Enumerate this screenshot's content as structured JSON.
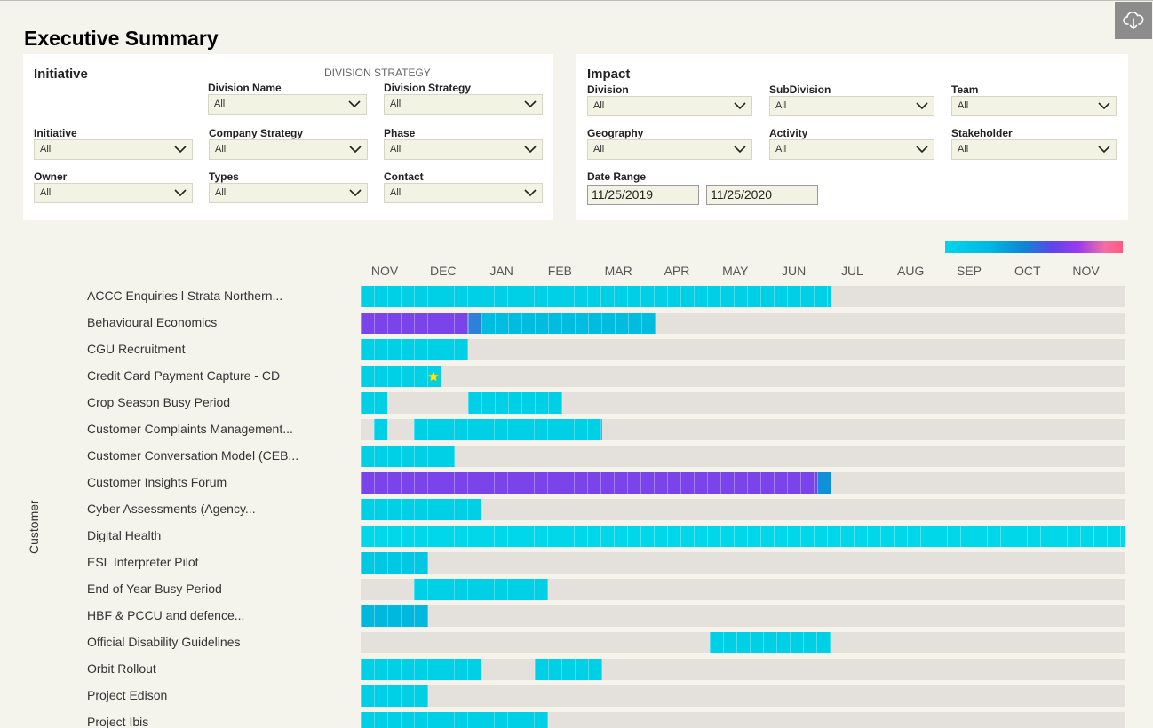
{
  "title": "Executive Summary",
  "toolbar": {
    "download_icon": "cloud-download-icon"
  },
  "initiative_panel": {
    "heading": "Initiative",
    "caption": "DIVISION STRATEGY",
    "filters": [
      {
        "label": "Division Name",
        "value": "All"
      },
      {
        "label": "Division Strategy",
        "value": "All"
      },
      {
        "label": "Initiative",
        "value": "All"
      },
      {
        "label": "Company Strategy",
        "value": "All"
      },
      {
        "label": "Phase",
        "value": "All"
      },
      {
        "label": "Owner",
        "value": "All"
      },
      {
        "label": "Types",
        "value": "All"
      },
      {
        "label": "Contact",
        "value": "All"
      }
    ]
  },
  "impact_panel": {
    "heading": "Impact",
    "filters": [
      {
        "label": "Division",
        "value": "All"
      },
      {
        "label": "SubDivision",
        "value": "All"
      },
      {
        "label": "Team",
        "value": "All"
      },
      {
        "label": "Geography",
        "value": "All"
      },
      {
        "label": "Activity",
        "value": "All"
      },
      {
        "label": "Stakeholder",
        "value": "All"
      }
    ],
    "date_range": {
      "label": "Date Range",
      "start": "11/25/2019",
      "end": "11/25/2020"
    }
  },
  "gantt": {
    "y_axis_label": "Customer",
    "weeks_total": 57,
    "months": [
      "NOV",
      "DEC",
      "JAN",
      "FEB",
      "MAR",
      "APR",
      "MAY",
      "JUN",
      "JUL",
      "AUG",
      "SEP",
      "OCT",
      "NOV"
    ],
    "legend_colors": [
      "#00d4ea",
      "#0f84d6",
      "#5d46e8",
      "#ff5a80"
    ],
    "rows": [
      {
        "label": "ACCC Enquiries l Strata Northern...",
        "segments": [
          {
            "start": 0,
            "end": 35,
            "color": "#00d0e6"
          }
        ]
      },
      {
        "label": "Behavioural Economics",
        "segments": [
          {
            "start": 0,
            "end": 8,
            "color": "#7b44ea"
          },
          {
            "start": 8,
            "end": 9,
            "color": "#2f80d8"
          },
          {
            "start": 9,
            "end": 22,
            "color": "#00bde0"
          }
        ]
      },
      {
        "label": "CGU Recruitment",
        "segments": [
          {
            "start": 0,
            "end": 8,
            "color": "#00d0e6"
          }
        ]
      },
      {
        "label": "Credit Card Payment Capture - CD",
        "segments": [
          {
            "start": 0,
            "end": 6,
            "color": "#00d0e6"
          }
        ],
        "marker": {
          "week": 5.4,
          "icon": "star-icon"
        }
      },
      {
        "label": "Crop Season Busy Period",
        "segments": [
          {
            "start": 0,
            "end": 2,
            "color": "#00d0e6"
          },
          {
            "start": 8,
            "end": 15,
            "color": "#00d0e6"
          }
        ]
      },
      {
        "label": "Customer Complaints Management...",
        "segments": [
          {
            "start": 1,
            "end": 2,
            "color": "#00d0e6"
          },
          {
            "start": 4,
            "end": 18,
            "color": "#00d0e6"
          }
        ]
      },
      {
        "label": "Customer Conversation Model (CEB...",
        "segments": [
          {
            "start": 0,
            "end": 7,
            "color": "#00d0e6"
          }
        ]
      },
      {
        "label": "Customer Insights Forum",
        "segments": [
          {
            "start": 0,
            "end": 34,
            "color": "#7b44ea"
          },
          {
            "start": 34,
            "end": 35,
            "color": "#1090d8"
          }
        ]
      },
      {
        "label": "Cyber Assessments (Agency...",
        "segments": [
          {
            "start": 0,
            "end": 9,
            "color": "#00d0e6"
          }
        ]
      },
      {
        "label": "Digital Health",
        "segments": [
          {
            "start": 0,
            "end": 57,
            "color": "#00d8ea"
          }
        ]
      },
      {
        "label": "ESL Interpreter Pilot",
        "segments": [
          {
            "start": 0,
            "end": 5,
            "color": "#00c8e2"
          }
        ]
      },
      {
        "label": "End of Year Busy Period",
        "segments": [
          {
            "start": 4,
            "end": 14,
            "color": "#00d0e6"
          }
        ]
      },
      {
        "label": "HBF & PCCU and defence...",
        "segments": [
          {
            "start": 0,
            "end": 5,
            "color": "#00b8de"
          }
        ]
      },
      {
        "label": "Official Disability Guidelines",
        "segments": [
          {
            "start": 26,
            "end": 35,
            "color": "#00d0e6"
          }
        ]
      },
      {
        "label": "Orbit Rollout",
        "segments": [
          {
            "start": 0,
            "end": 9,
            "color": "#00d0e6"
          },
          {
            "start": 13,
            "end": 18,
            "color": "#00d0e6"
          }
        ]
      },
      {
        "label": "Project Edison",
        "segments": [
          {
            "start": 0,
            "end": 5,
            "color": "#00d0e6"
          }
        ]
      },
      {
        "label": "Project Ibis",
        "segments": [
          {
            "start": 0,
            "end": 14,
            "color": "#00d0e6"
          }
        ]
      }
    ]
  }
}
